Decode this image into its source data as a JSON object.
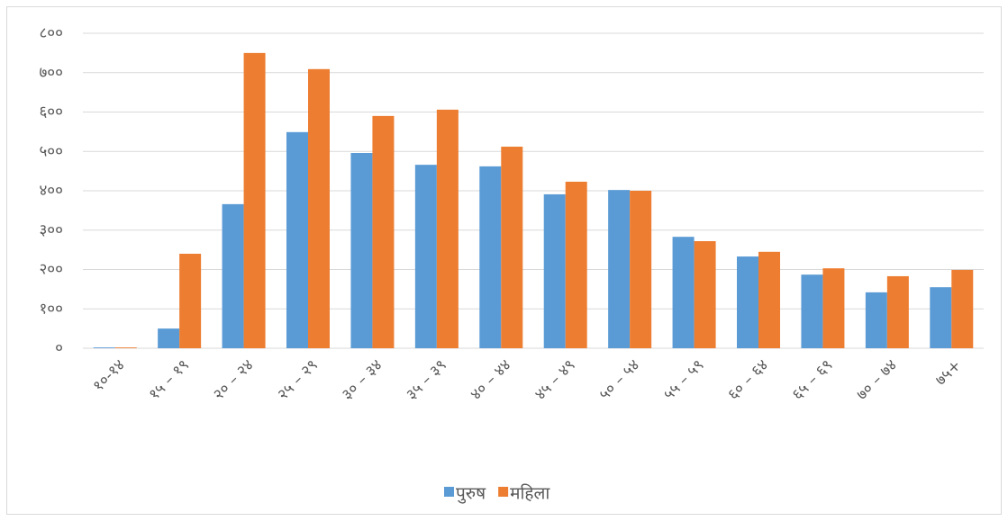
{
  "chart_data": {
    "type": "bar",
    "categories": [
      "१०-१४",
      "१५ – १९",
      "२० – २४",
      "२५ – २९",
      "३० – ३४",
      "३५ – ३९",
      "४० – ४४",
      "४५ – ४९",
      "५० – ५४",
      "५५ – ५९",
      "६० – ६४",
      "६५ – ६९",
      "७० – ७४",
      "७५+"
    ],
    "series": [
      {
        "name": "पुरुष",
        "color": "#5b9bd5",
        "values": [
          2,
          50,
          366,
          549,
          496,
          466,
          462,
          391,
          402,
          283,
          233,
          187,
          142,
          155
        ]
      },
      {
        "name": "महिला",
        "color": "#ed7d31",
        "values": [
          2,
          240,
          750,
          709,
          590,
          606,
          512,
          423,
          400,
          272,
          245,
          203,
          183,
          199
        ]
      }
    ],
    "ylim": [
      0,
      800
    ],
    "yticks": [
      {
        "value": 0,
        "label": "०"
      },
      {
        "value": 100,
        "label": "१००"
      },
      {
        "value": 200,
        "label": "२००"
      },
      {
        "value": 300,
        "label": "३००"
      },
      {
        "value": 400,
        "label": "४००"
      },
      {
        "value": 500,
        "label": "५००"
      },
      {
        "value": 600,
        "label": "६००"
      },
      {
        "value": 700,
        "label": "७००"
      },
      {
        "value": 800,
        "label": "८००"
      }
    ],
    "grid": true,
    "legend": "bottom"
  }
}
